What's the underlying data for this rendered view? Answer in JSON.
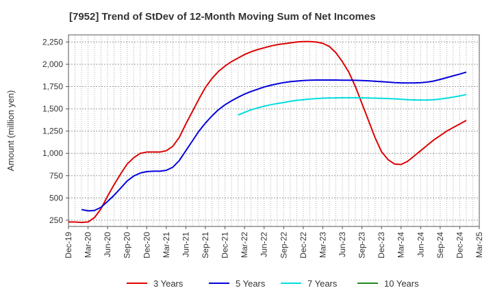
{
  "chart_data": {
    "type": "line",
    "title": "[7952]  Trend of StDev of 12-Month Moving Sum of Net Incomes",
    "xlabel": "",
    "ylabel": "Amount (million yen)",
    "ylim": [
      180,
      2330
    ],
    "y_ticks": [
      250,
      500,
      750,
      1000,
      1250,
      1500,
      1750,
      2000,
      2250
    ],
    "y_tick_labels": [
      "250",
      "500",
      "750",
      "1,000",
      "1,250",
      "1,500",
      "1,750",
      "2,000",
      "2,250"
    ],
    "x_ticks": [
      "Dec-19",
      "Mar-20",
      "Jun-20",
      "Sep-20",
      "Dec-20",
      "Mar-21",
      "Jun-21",
      "Sep-21",
      "Dec-21",
      "Mar-22",
      "Jun-22",
      "Sep-22",
      "Dec-22",
      "Mar-23",
      "Jun-23",
      "Sep-23",
      "Dec-23",
      "Mar-24",
      "Jun-24",
      "Sep-24",
      "Dec-24",
      "Mar-25"
    ],
    "grid": true,
    "legend_position": "bottom",
    "series": [
      {
        "name": "3 Years",
        "color": "#dd0000",
        "points": [
          [
            "Dec-19",
            230
          ],
          [
            "Jan-20",
            230
          ],
          [
            "Feb-20",
            225
          ],
          [
            "Mar-20",
            230
          ],
          [
            "Apr-20",
            280
          ],
          [
            "May-20",
            380
          ],
          [
            "Jun-20",
            520
          ],
          [
            "Jul-20",
            650
          ],
          [
            "Aug-20",
            770
          ],
          [
            "Sep-20",
            880
          ],
          [
            "Oct-20",
            950
          ],
          [
            "Nov-20",
            1000
          ],
          [
            "Dec-20",
            1015
          ],
          [
            "Jan-21",
            1015
          ],
          [
            "Feb-21",
            1015
          ],
          [
            "Mar-21",
            1030
          ],
          [
            "Apr-21",
            1080
          ],
          [
            "May-21",
            1180
          ],
          [
            "Jun-21",
            1330
          ],
          [
            "Jul-21",
            1470
          ],
          [
            "Aug-21",
            1610
          ],
          [
            "Sep-21",
            1740
          ],
          [
            "Oct-21",
            1840
          ],
          [
            "Nov-21",
            1920
          ],
          [
            "Dec-21",
            1980
          ],
          [
            "Jan-22",
            2030
          ],
          [
            "Feb-22",
            2070
          ],
          [
            "Mar-22",
            2110
          ],
          [
            "Apr-22",
            2140
          ],
          [
            "May-22",
            2165
          ],
          [
            "Jun-22",
            2185
          ],
          [
            "Jul-22",
            2205
          ],
          [
            "Aug-22",
            2220
          ],
          [
            "Sep-22",
            2230
          ],
          [
            "Oct-22",
            2240
          ],
          [
            "Nov-22",
            2250
          ],
          [
            "Dec-22",
            2255
          ],
          [
            "Jan-23",
            2255
          ],
          [
            "Feb-23",
            2250
          ],
          [
            "Mar-23",
            2235
          ],
          [
            "Apr-23",
            2200
          ],
          [
            "May-23",
            2130
          ],
          [
            "Jun-23",
            2030
          ],
          [
            "Jul-23",
            1910
          ],
          [
            "Aug-23",
            1750
          ],
          [
            "Sep-23",
            1560
          ],
          [
            "Oct-23",
            1370
          ],
          [
            "Nov-23",
            1180
          ],
          [
            "Dec-23",
            1020
          ],
          [
            "Jan-24",
            930
          ],
          [
            "Feb-24",
            880
          ],
          [
            "Mar-24",
            875
          ],
          [
            "Apr-24",
            910
          ],
          [
            "May-24",
            970
          ],
          [
            "Jun-24",
            1030
          ],
          [
            "Jul-24",
            1090
          ],
          [
            "Aug-24",
            1150
          ],
          [
            "Sep-24",
            1200
          ],
          [
            "Oct-24",
            1250
          ],
          [
            "Nov-24",
            1290
          ],
          [
            "Dec-24",
            1330
          ],
          [
            "Jan-25",
            1370
          ]
        ]
      },
      {
        "name": "5 Years",
        "color": "#0000dd",
        "points": [
          [
            "Feb-20",
            370
          ],
          [
            "Mar-20",
            355
          ],
          [
            "Apr-20",
            360
          ],
          [
            "May-20",
            395
          ],
          [
            "Jun-20",
            460
          ],
          [
            "Jul-20",
            530
          ],
          [
            "Aug-20",
            610
          ],
          [
            "Sep-20",
            690
          ],
          [
            "Oct-20",
            745
          ],
          [
            "Nov-20",
            780
          ],
          [
            "Dec-20",
            795
          ],
          [
            "Jan-21",
            800
          ],
          [
            "Feb-21",
            800
          ],
          [
            "Mar-21",
            810
          ],
          [
            "Apr-21",
            845
          ],
          [
            "May-21",
            920
          ],
          [
            "Jun-21",
            1030
          ],
          [
            "Jul-21",
            1140
          ],
          [
            "Aug-21",
            1250
          ],
          [
            "Sep-21",
            1340
          ],
          [
            "Oct-21",
            1420
          ],
          [
            "Nov-21",
            1490
          ],
          [
            "Dec-21",
            1545
          ],
          [
            "Jan-22",
            1590
          ],
          [
            "Feb-22",
            1630
          ],
          [
            "Mar-22",
            1665
          ],
          [
            "Apr-22",
            1695
          ],
          [
            "May-22",
            1720
          ],
          [
            "Jun-22",
            1745
          ],
          [
            "Jul-22",
            1765
          ],
          [
            "Aug-22",
            1780
          ],
          [
            "Sep-22",
            1795
          ],
          [
            "Oct-22",
            1805
          ],
          [
            "Nov-22",
            1812
          ],
          [
            "Dec-22",
            1818
          ],
          [
            "Jan-23",
            1822
          ],
          [
            "Feb-23",
            1823
          ],
          [
            "Mar-23",
            1823
          ],
          [
            "Apr-23",
            1823
          ],
          [
            "May-23",
            1823
          ],
          [
            "Jun-23",
            1822
          ],
          [
            "Jul-23",
            1821
          ],
          [
            "Aug-23",
            1820
          ],
          [
            "Sep-23",
            1818
          ],
          [
            "Oct-23",
            1815
          ],
          [
            "Nov-23",
            1810
          ],
          [
            "Dec-23",
            1805
          ],
          [
            "Jan-24",
            1800
          ],
          [
            "Feb-24",
            1795
          ],
          [
            "Mar-24",
            1792
          ],
          [
            "Apr-24",
            1790
          ],
          [
            "May-24",
            1790
          ],
          [
            "Jun-24",
            1793
          ],
          [
            "Jul-24",
            1800
          ],
          [
            "Aug-24",
            1812
          ],
          [
            "Sep-24",
            1830
          ],
          [
            "Oct-24",
            1850
          ],
          [
            "Nov-24",
            1870
          ],
          [
            "Dec-24",
            1890
          ],
          [
            "Jan-25",
            1912
          ]
        ]
      },
      {
        "name": "7 Years",
        "color": "#00dddd",
        "points": [
          [
            "Feb-22",
            1430
          ],
          [
            "Mar-22",
            1460
          ],
          [
            "Apr-22",
            1490
          ],
          [
            "May-22",
            1510
          ],
          [
            "Jun-22",
            1530
          ],
          [
            "Jul-22",
            1545
          ],
          [
            "Aug-22",
            1560
          ],
          [
            "Sep-22",
            1570
          ],
          [
            "Oct-22",
            1585
          ],
          [
            "Nov-22",
            1595
          ],
          [
            "Dec-22",
            1603
          ],
          [
            "Jan-23",
            1610
          ],
          [
            "Feb-23",
            1615
          ],
          [
            "Mar-23",
            1620
          ],
          [
            "Apr-23",
            1622
          ],
          [
            "May-23",
            1623
          ],
          [
            "Jun-23",
            1624
          ],
          [
            "Jul-23",
            1624
          ],
          [
            "Aug-23",
            1624
          ],
          [
            "Sep-23",
            1623
          ],
          [
            "Oct-23",
            1622
          ],
          [
            "Nov-23",
            1620
          ],
          [
            "Dec-23",
            1618
          ],
          [
            "Jan-24",
            1615
          ],
          [
            "Feb-24",
            1612
          ],
          [
            "Mar-24",
            1608
          ],
          [
            "Apr-24",
            1603
          ],
          [
            "May-24",
            1600
          ],
          [
            "Jun-24",
            1598
          ],
          [
            "Jul-24",
            1598
          ],
          [
            "Aug-24",
            1602
          ],
          [
            "Sep-24",
            1610
          ],
          [
            "Oct-24",
            1620
          ],
          [
            "Nov-24",
            1632
          ],
          [
            "Dec-24",
            1645
          ],
          [
            "Jan-25",
            1660
          ]
        ]
      },
      {
        "name": "10 Years",
        "color": "#228822",
        "points": []
      }
    ]
  }
}
